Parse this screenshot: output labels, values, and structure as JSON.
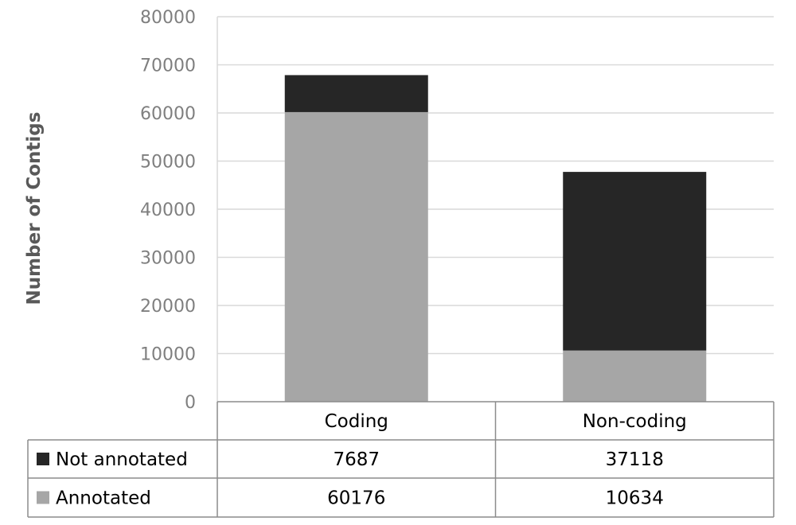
{
  "chart_data": {
    "type": "bar",
    "stacked": true,
    "categories": [
      "Coding",
      "Non-coding"
    ],
    "series": [
      {
        "name": "Annotated",
        "values": [
          60176,
          10634
        ],
        "color": "#a6a6a6"
      },
      {
        "name": "Not annotated",
        "values": [
          7687,
          37118
        ],
        "color": "#262626"
      }
    ],
    "ylabel": "Number of Contigs",
    "ylim": [
      0,
      80000
    ],
    "yticks": [
      0,
      10000,
      20000,
      30000,
      40000,
      50000,
      60000,
      70000,
      80000
    ],
    "grid": true,
    "legend": "data-table",
    "table_rows": [
      "Not annotated",
      "Annotated"
    ]
  }
}
